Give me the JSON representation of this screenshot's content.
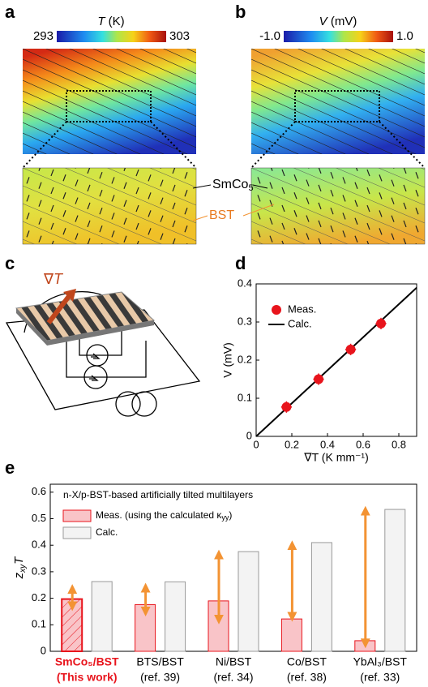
{
  "panels": {
    "a": {
      "label": "a",
      "colorbar": {
        "var": "T",
        "unit": " (K)",
        "min": "293",
        "max": "303"
      }
    },
    "b": {
      "label": "b",
      "colorbar": {
        "var": "V",
        "unit": " (mV)",
        "min": "-1.0",
        "max": "1.0"
      }
    },
    "annotations": {
      "smco": "SmCo",
      "smco_sub": "5",
      "bst": "BST"
    },
    "c": {
      "label": "c",
      "gradient": "∇",
      "gradient_var": "T"
    }
  },
  "chart_data": [
    {
      "type": "scatter",
      "label": "d",
      "xlabel": "∇T (K mm⁻¹)",
      "ylabel": "V (mV)",
      "xlim": [
        0,
        0.9
      ],
      "ylim": [
        0,
        0.4
      ],
      "xticks": [
        0,
        0.2,
        0.4,
        0.6,
        0.8
      ],
      "yticks": [
        0,
        0.1,
        0.2,
        0.3,
        0.4
      ],
      "series": [
        {
          "name": "Meas.",
          "color": "#e8141c",
          "x": [
            0.17,
            0.35,
            0.53,
            0.7
          ],
          "values": [
            0.077,
            0.15,
            0.228,
            0.296
          ],
          "xerr": [
            0.03,
            0.03,
            0.03,
            0.03
          ],
          "yerr": [
            0.015,
            0.015,
            0.015,
            0.015
          ]
        },
        {
          "name": "Calc.",
          "color": "#000000",
          "x": [
            0,
            0.9
          ],
          "values": [
            0,
            0.39
          ]
        }
      ]
    },
    {
      "type": "bar",
      "label": "e",
      "title": "n-X/p-BST-based artificially tilted multilayers",
      "ylabel": {
        "main": "z",
        "sub": "xy",
        "tail": "T"
      },
      "categories": [
        [
          "SmCo₅/BST",
          "(This work)"
        ],
        [
          "BTS/BST",
          "(ref. 39)"
        ],
        [
          "Ni/BST",
          "(ref. 34)"
        ],
        [
          "Co/BST",
          "(ref. 38)"
        ],
        [
          "YbAl₃/BST",
          "(ref. 33)"
        ]
      ],
      "highlight": 0,
      "highlight_color": "#e8141c",
      "ylim": [
        0,
        0.63
      ],
      "yticks": [
        0,
        0.1,
        0.2,
        0.3,
        0.4,
        0.5,
        0.6
      ],
      "series": [
        {
          "name": "Meas. (using the calculated κ",
          "name_sub": "yy",
          "name_tail": ")",
          "color": "#f9c4c8",
          "edge": "#e8141c",
          "values": [
            0.197,
            0.176,
            0.19,
            0.122,
            0.04
          ]
        },
        {
          "name": "Calc.",
          "color": "#f3f3f3",
          "edge": "#999999",
          "values": [
            0.263,
            0.262,
            0.376,
            0.41,
            0.535
          ]
        }
      ],
      "ranges": {
        "color": "#f39333",
        "low": [
          0.17,
          0.15,
          0.12,
          0.13,
          0.03
        ],
        "high": [
          0.235,
          0.24,
          0.365,
          0.4,
          0.53
        ]
      }
    }
  ]
}
